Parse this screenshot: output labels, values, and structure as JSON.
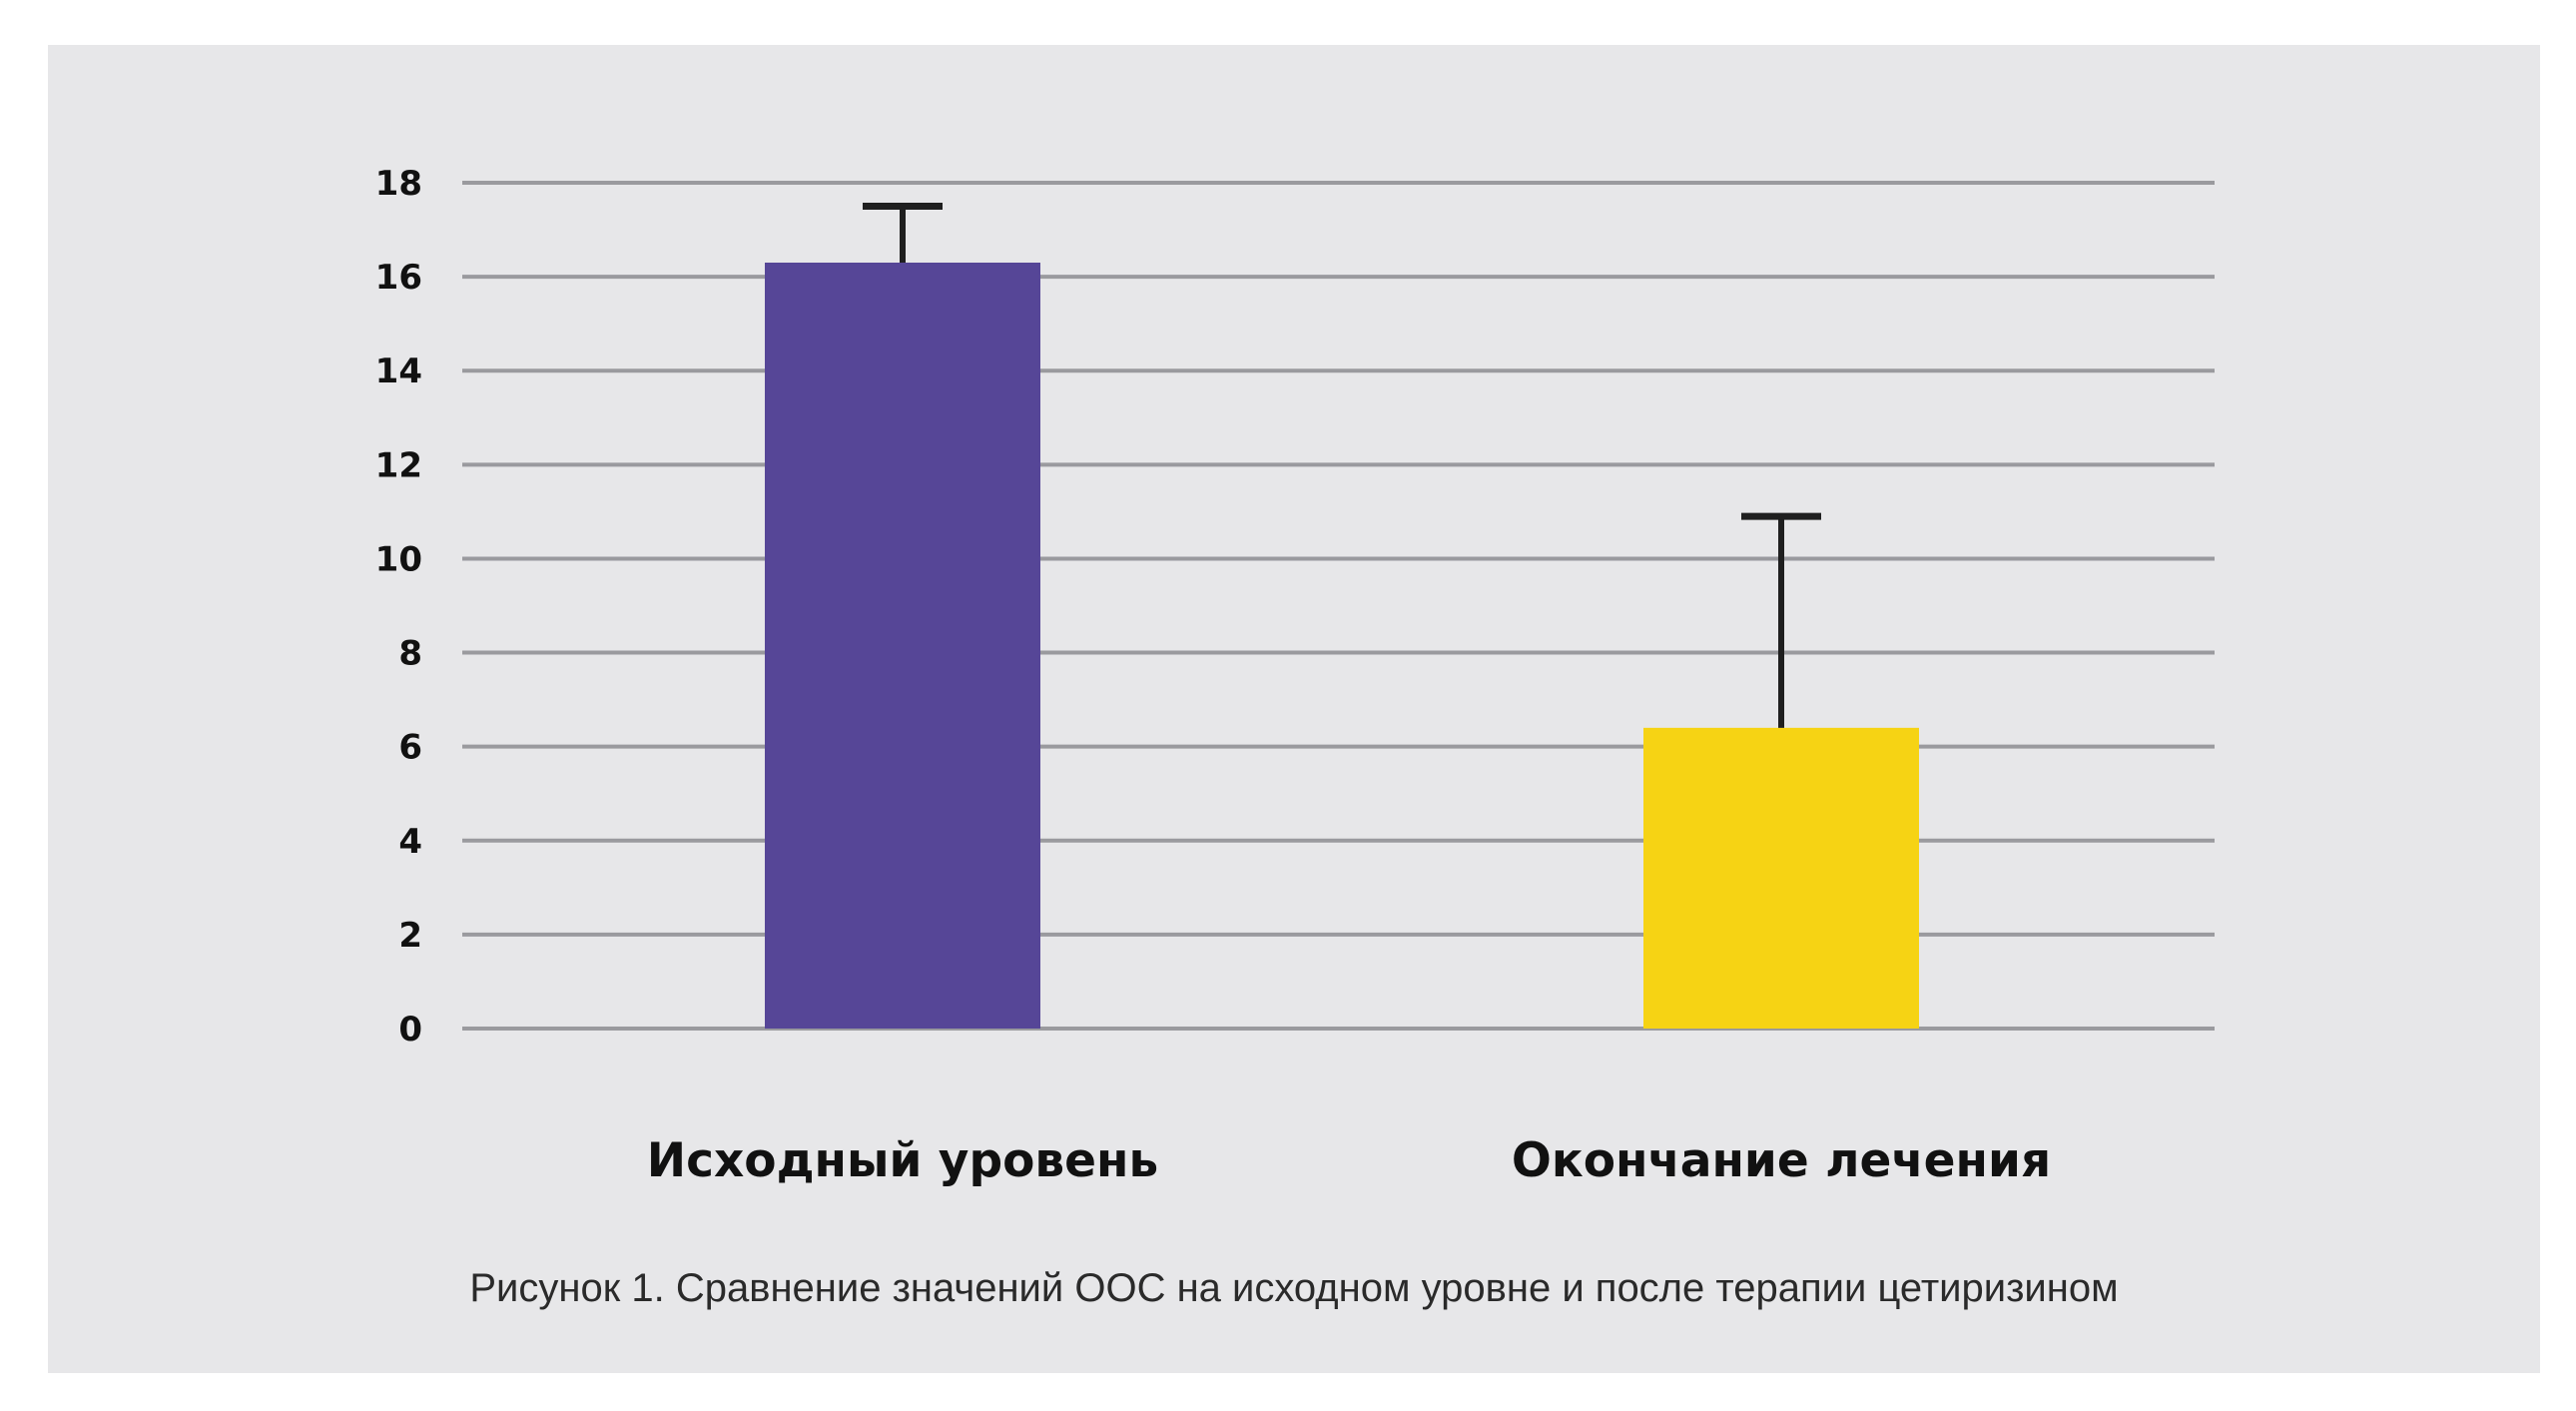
{
  "chart_data": {
    "type": "bar",
    "categories": [
      "Исходный уровень",
      "Окончание лечения"
    ],
    "values": [
      16.3,
      6.4
    ],
    "error_upper": [
      17.5,
      10.9
    ],
    "colors": [
      "#564697",
      "#f6d314"
    ],
    "ylim": [
      0,
      18
    ],
    "yticks": [
      "0",
      "2",
      "4",
      "6",
      "8",
      "10",
      "12",
      "14",
      "16",
      "18"
    ],
    "grid": true,
    "caption": "Рисунок 1. Сравнение значений ООС на исходном уровне и после терапии цетиризином"
  }
}
